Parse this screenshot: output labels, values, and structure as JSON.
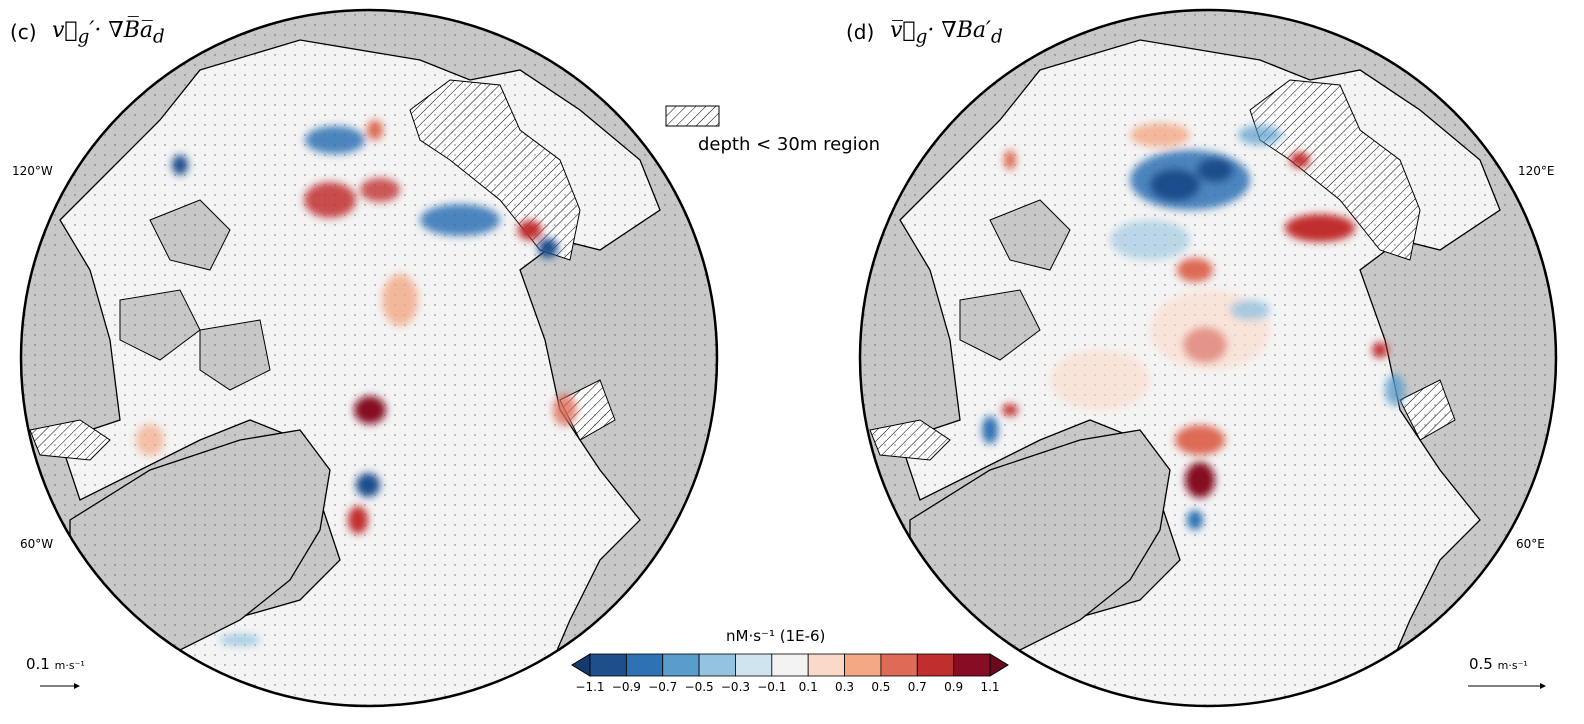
{
  "panels": [
    {
      "label": "(c)",
      "title_html": "v⃗<sub>g</sub>′· ∇B̅a̅<sub>d</sub>",
      "lon_left": "120°W",
      "lon_left_lower": "60°W",
      "scale_value": "0.1",
      "scale_unit": "m·s⁻¹"
    },
    {
      "label": "(d)",
      "title_html": "v̅⃗<sub>g</sub>· ∇Ba′<sub>d</sub>",
      "lon_right": "120°E",
      "lon_right_lower": "60°E",
      "scale_value": "0.5",
      "scale_unit": "m·s⁻¹"
    }
  ],
  "legend": {
    "hatch_label": "depth < 30m region"
  },
  "colorbar": {
    "title": "nM·s⁻¹ (1E-6)",
    "ticks": [
      "−1.1",
      "−0.9",
      "−0.7",
      "−0.5",
      "−0.3",
      "−0.1",
      "0.1",
      "0.3",
      "0.5",
      "0.7",
      "0.9",
      "1.1"
    ],
    "colors": [
      "#1f4e8c",
      "#2f72b4",
      "#5a9ccc",
      "#94c3e0",
      "#d0e4f0",
      "#f3f3f3",
      "#fbd9c8",
      "#f3a884",
      "#dd6b55",
      "#c12e2e",
      "#860d24"
    ],
    "extend_low_color": "#153a6e",
    "extend_high_color": "#6a0a1e"
  },
  "colors": {
    "land": "#c8c8c8",
    "ocean": "#f2f2f2",
    "positive": "#c12e2e",
    "negative": "#2f72b4"
  }
}
